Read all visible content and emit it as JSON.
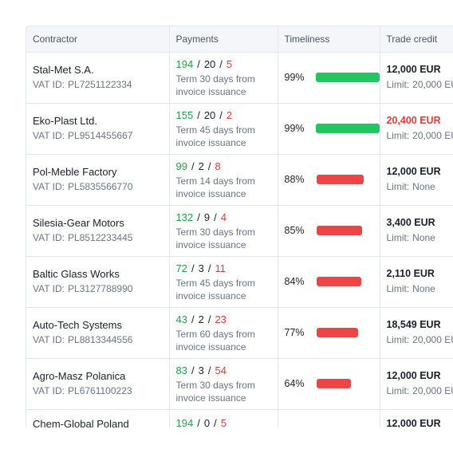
{
  "table": {
    "headers": [
      "Contractor",
      "Payments",
      "Timeliness",
      "Trade credit"
    ],
    "vat_label": "VAT ID:",
    "limit_label": "Limit:",
    "rows": [
      {
        "name": "Stal-Met S.A.",
        "vat": "PL7251122334",
        "paid": "194",
        "pending": "20",
        "late": "5",
        "term": "Term 30 days from invoice issuance",
        "timeliness": "99%",
        "timeliness_value": 0.99,
        "status": "good",
        "credit": "12,000 EUR",
        "credit_over": false,
        "limit": "20,000 EUR"
      },
      {
        "name": "Eko-Plast Ltd.",
        "vat": "PL9514455667",
        "paid": "155",
        "pending": "20",
        "late": "2",
        "term": "Term 45 days from invoice issuance",
        "timeliness": "99%",
        "timeliness_value": 0.99,
        "status": "good",
        "credit": "20,400 EUR",
        "credit_over": true,
        "limit": "20,000 EUR"
      },
      {
        "name": "Pol-Meble Factory",
        "vat": "PL5835566770",
        "paid": "99",
        "pending": "2",
        "late": "8",
        "term": "Term 14 days from invoice issuance",
        "timeliness": "88%",
        "timeliness_value": 0.88,
        "status": "bad",
        "credit": "12,000 EUR",
        "credit_over": false,
        "limit": "None"
      },
      {
        "name": "Silesia-Gear Motors",
        "vat": "PL8512233445",
        "paid": "132",
        "pending": "9",
        "late": "4",
        "term": "Term 30 days from invoice issuance",
        "timeliness": "85%",
        "timeliness_value": 0.85,
        "status": "bad",
        "credit": "3,400 EUR",
        "credit_over": false,
        "limit": "None"
      },
      {
        "name": "Baltic Glass Works",
        "vat": "PL3127788990",
        "paid": "72",
        "pending": "3",
        "late": "11",
        "term": "Term 45 days from invoice issuance",
        "timeliness": "84%",
        "timeliness_value": 0.84,
        "status": "bad",
        "credit": "2,110 EUR",
        "credit_over": false,
        "limit": "None"
      },
      {
        "name": "Auto-Tech Systems",
        "vat": "PL8813344556",
        "paid": "43",
        "pending": "2",
        "late": "23",
        "term": "Term 60 days from invoice issuance",
        "timeliness": "77%",
        "timeliness_value": 0.77,
        "status": "bad",
        "credit": "18,549 EUR",
        "credit_over": false,
        "limit": "20,000 EUR"
      },
      {
        "name": "Agro-Masz Polanica",
        "vat": "PL6761100223",
        "paid": "83",
        "pending": "3",
        "late": "54",
        "term": "Term 30 days from invoice issuance",
        "timeliness": "64%",
        "timeliness_value": 0.64,
        "status": "bad",
        "credit": "12,000 EUR",
        "credit_over": false,
        "limit": "20,000 EUR"
      },
      {
        "name": "Chem-Global Poland",
        "vat": "",
        "paid": "194",
        "pending": "0",
        "late": "5",
        "term": "",
        "timeliness": "",
        "timeliness_value": null,
        "status": "",
        "credit": "12,000 EUR",
        "credit_over": false,
        "limit": "",
        "partial": true
      }
    ]
  },
  "colors": {
    "good": "#22c55e",
    "bad": "#ef4444",
    "header_bg": "#f4f6f9",
    "border": "#e3e8ef"
  }
}
